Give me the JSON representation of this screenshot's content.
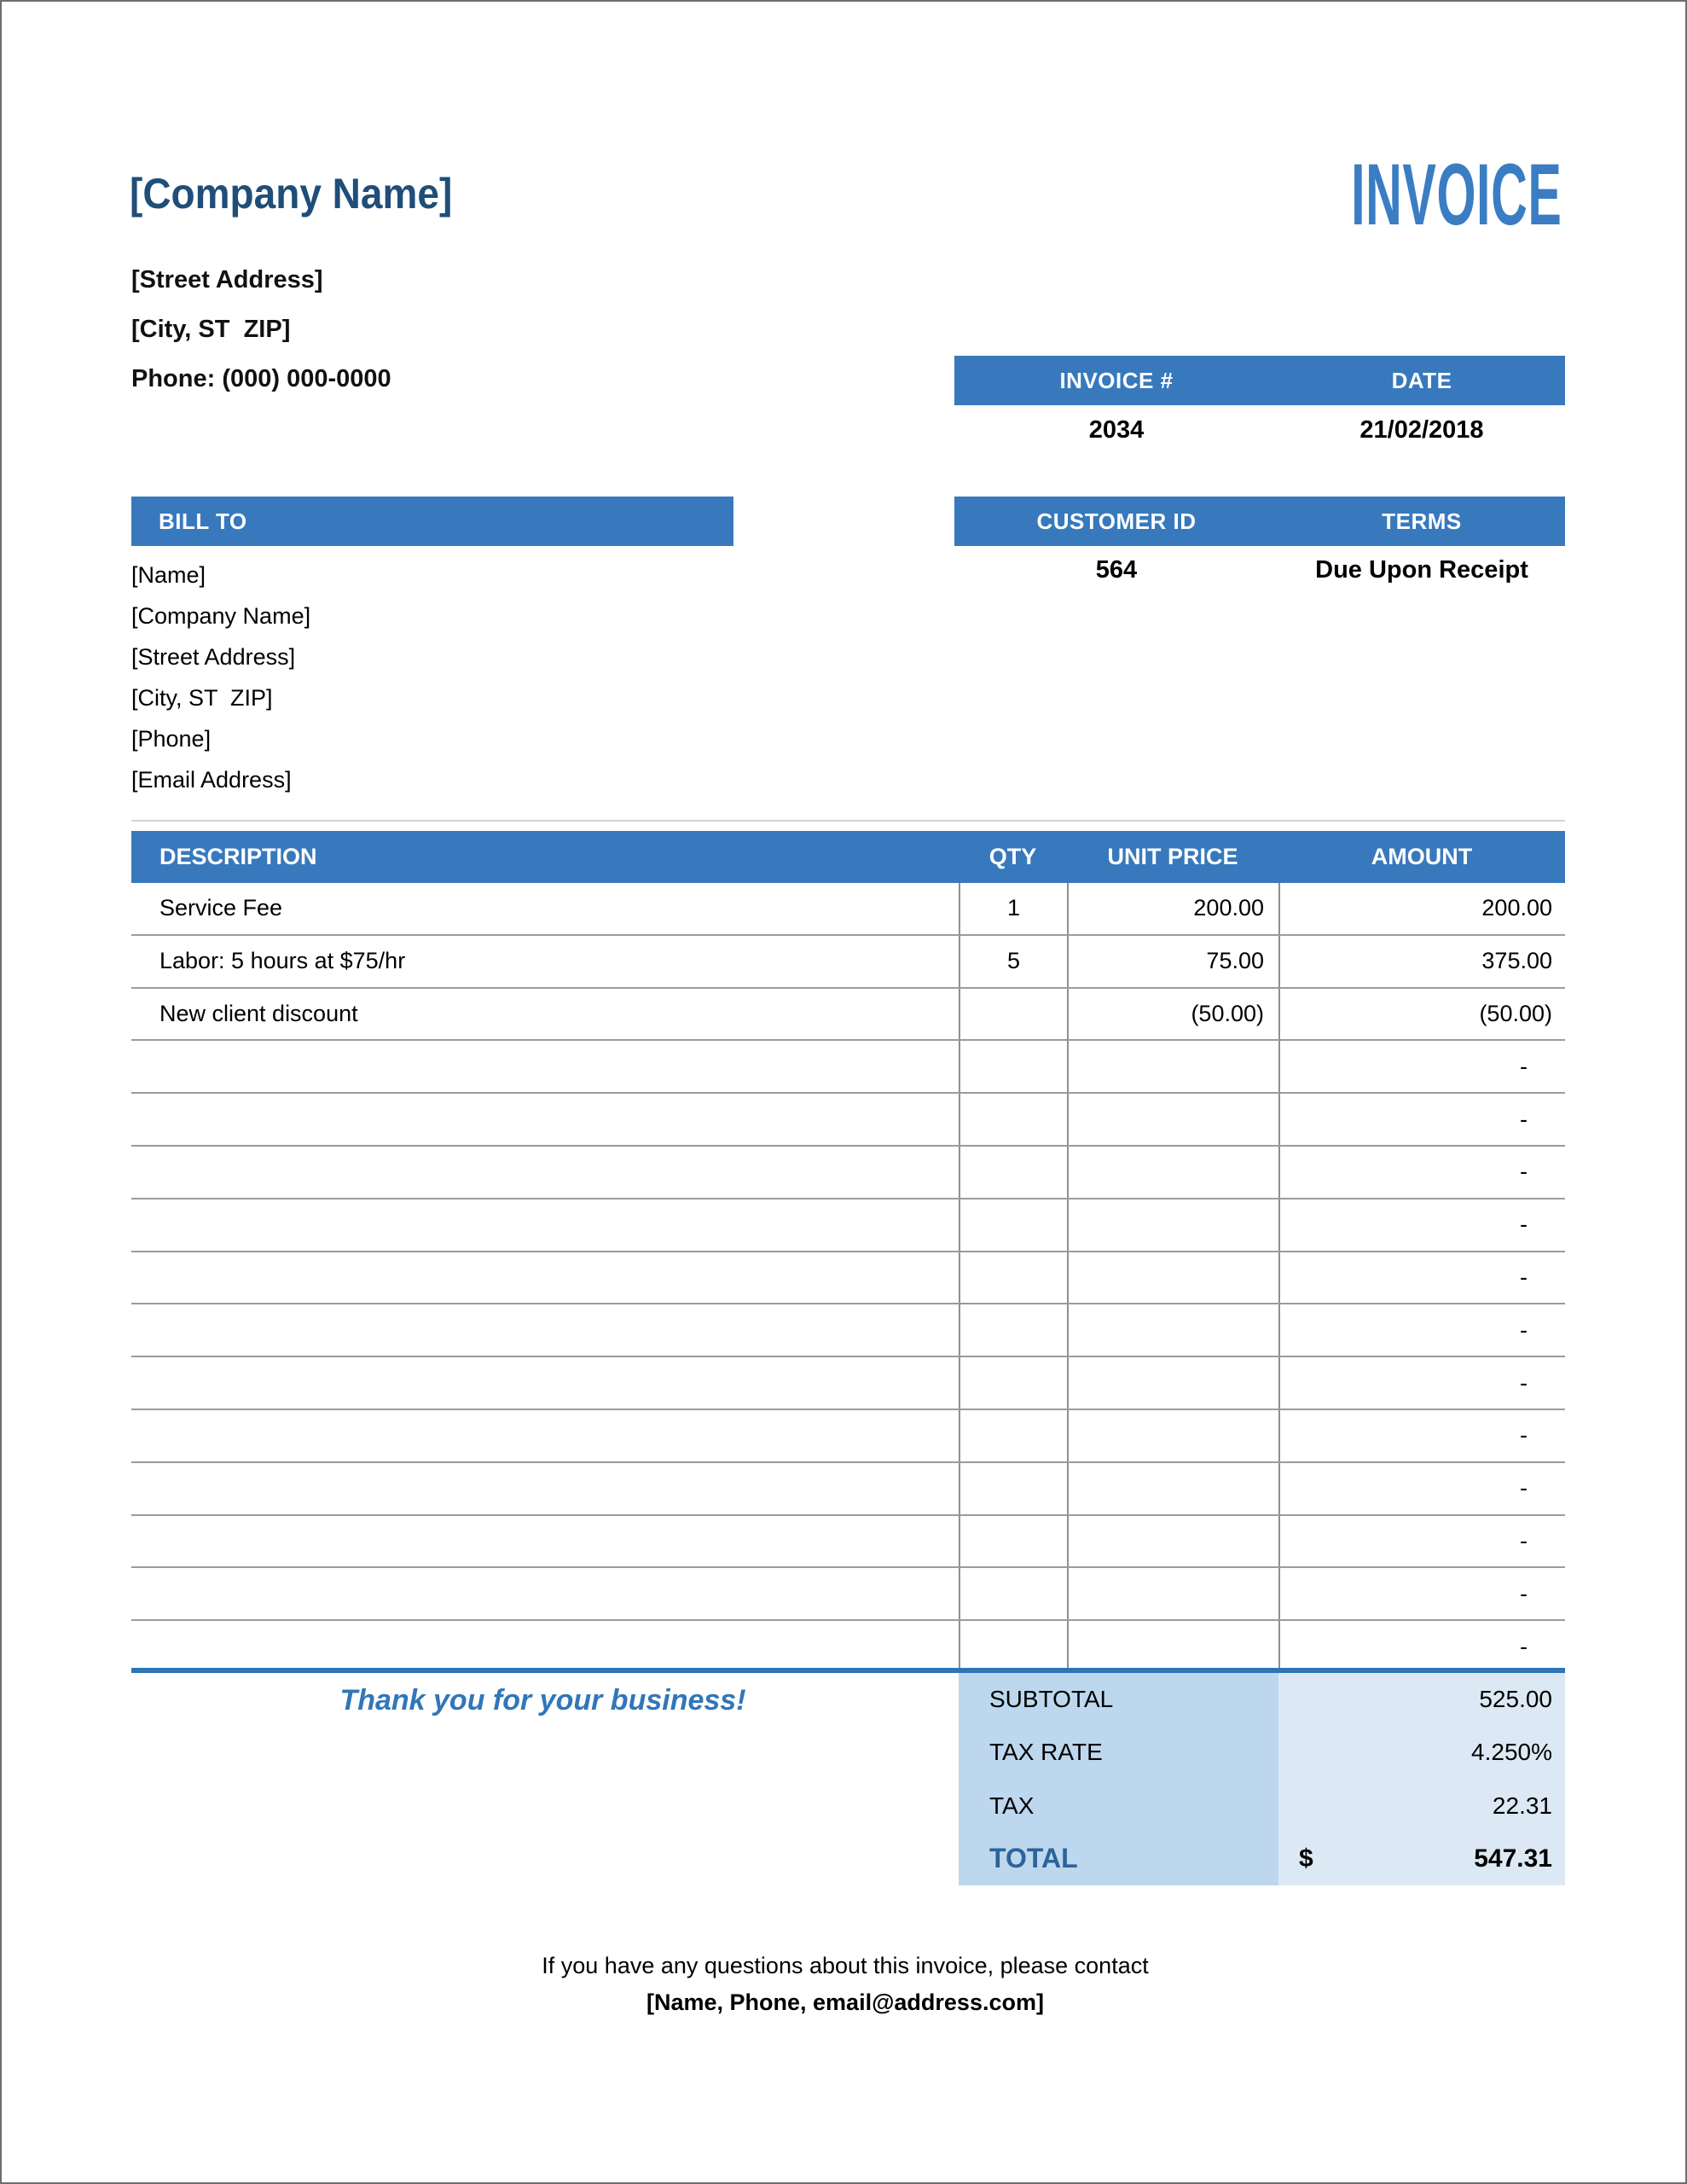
{
  "header": {
    "company_name": "[Company Name]",
    "street_address": "[Street Address]",
    "city_line": "[City, ST  ZIP]",
    "phone_line": "Phone: (000) 000-0000",
    "invoice_title": "INVOICE"
  },
  "invoice_meta": {
    "invoice_number_label": "INVOICE #",
    "invoice_number": "2034",
    "date_label": "DATE",
    "date": "21/02/2018",
    "customer_id_label": "CUSTOMER ID",
    "customer_id": "564",
    "terms_label": "TERMS",
    "terms": "Due Upon Receipt"
  },
  "bill_to": {
    "label": "BILL TO",
    "lines": [
      "[Name]",
      "[Company Name]",
      "[Street Address]",
      "[City, ST  ZIP]",
      "[Phone]",
      "[Email Address]"
    ]
  },
  "items_table": {
    "headers": {
      "description": "DESCRIPTION",
      "qty": "QTY",
      "unit_price": "UNIT PRICE",
      "amount": "AMOUNT"
    },
    "rows": [
      {
        "description": "Service Fee",
        "qty": "1",
        "unit_price": "200.00",
        "amount": "200.00"
      },
      {
        "description": "Labor: 5 hours at $75/hr",
        "qty": "5",
        "unit_price": "75.00",
        "amount": "375.00"
      },
      {
        "description": "New client discount",
        "qty": "",
        "unit_price": "(50.00)",
        "amount": "(50.00)"
      },
      {
        "description": "",
        "qty": "",
        "unit_price": "",
        "amount": "-"
      },
      {
        "description": "",
        "qty": "",
        "unit_price": "",
        "amount": "-"
      },
      {
        "description": "",
        "qty": "",
        "unit_price": "",
        "amount": "-"
      },
      {
        "description": "",
        "qty": "",
        "unit_price": "",
        "amount": "-"
      },
      {
        "description": "",
        "qty": "",
        "unit_price": "",
        "amount": "-"
      },
      {
        "description": "",
        "qty": "",
        "unit_price": "",
        "amount": "-"
      },
      {
        "description": "",
        "qty": "",
        "unit_price": "",
        "amount": "-"
      },
      {
        "description": "",
        "qty": "",
        "unit_price": "",
        "amount": "-"
      },
      {
        "description": "",
        "qty": "",
        "unit_price": "",
        "amount": "-"
      },
      {
        "description": "",
        "qty": "",
        "unit_price": "",
        "amount": "-"
      },
      {
        "description": "",
        "qty": "",
        "unit_price": "",
        "amount": "-"
      },
      {
        "description": "",
        "qty": "",
        "unit_price": "",
        "amount": "-"
      }
    ]
  },
  "summary": {
    "thank_you": "Thank you for your business!",
    "rows": [
      {
        "label": "SUBTOTAL",
        "currency": "",
        "value": "525.00",
        "is_total": false
      },
      {
        "label": "TAX RATE",
        "currency": "",
        "value": "4.250%",
        "is_total": false
      },
      {
        "label": "TAX",
        "currency": "",
        "value": "22.31",
        "is_total": false
      },
      {
        "label": "TOTAL",
        "currency": "$",
        "value": "547.31",
        "is_total": true
      }
    ]
  },
  "footer": {
    "line1": "If you have any questions about this invoice, please contact",
    "line2": "[Name, Phone, email@address.com]"
  },
  "colors": {
    "band_blue": "#3879BD",
    "title_blue": "#3A7DC2",
    "company_navy": "#1F4E79",
    "rule_blue": "#2E75B6",
    "total_label_blue": "#2B6499",
    "summary_label_bg": "#BDD7EE",
    "summary_value_bg": "#DCE9F5",
    "row_line_gray": "#9b9b9b"
  }
}
